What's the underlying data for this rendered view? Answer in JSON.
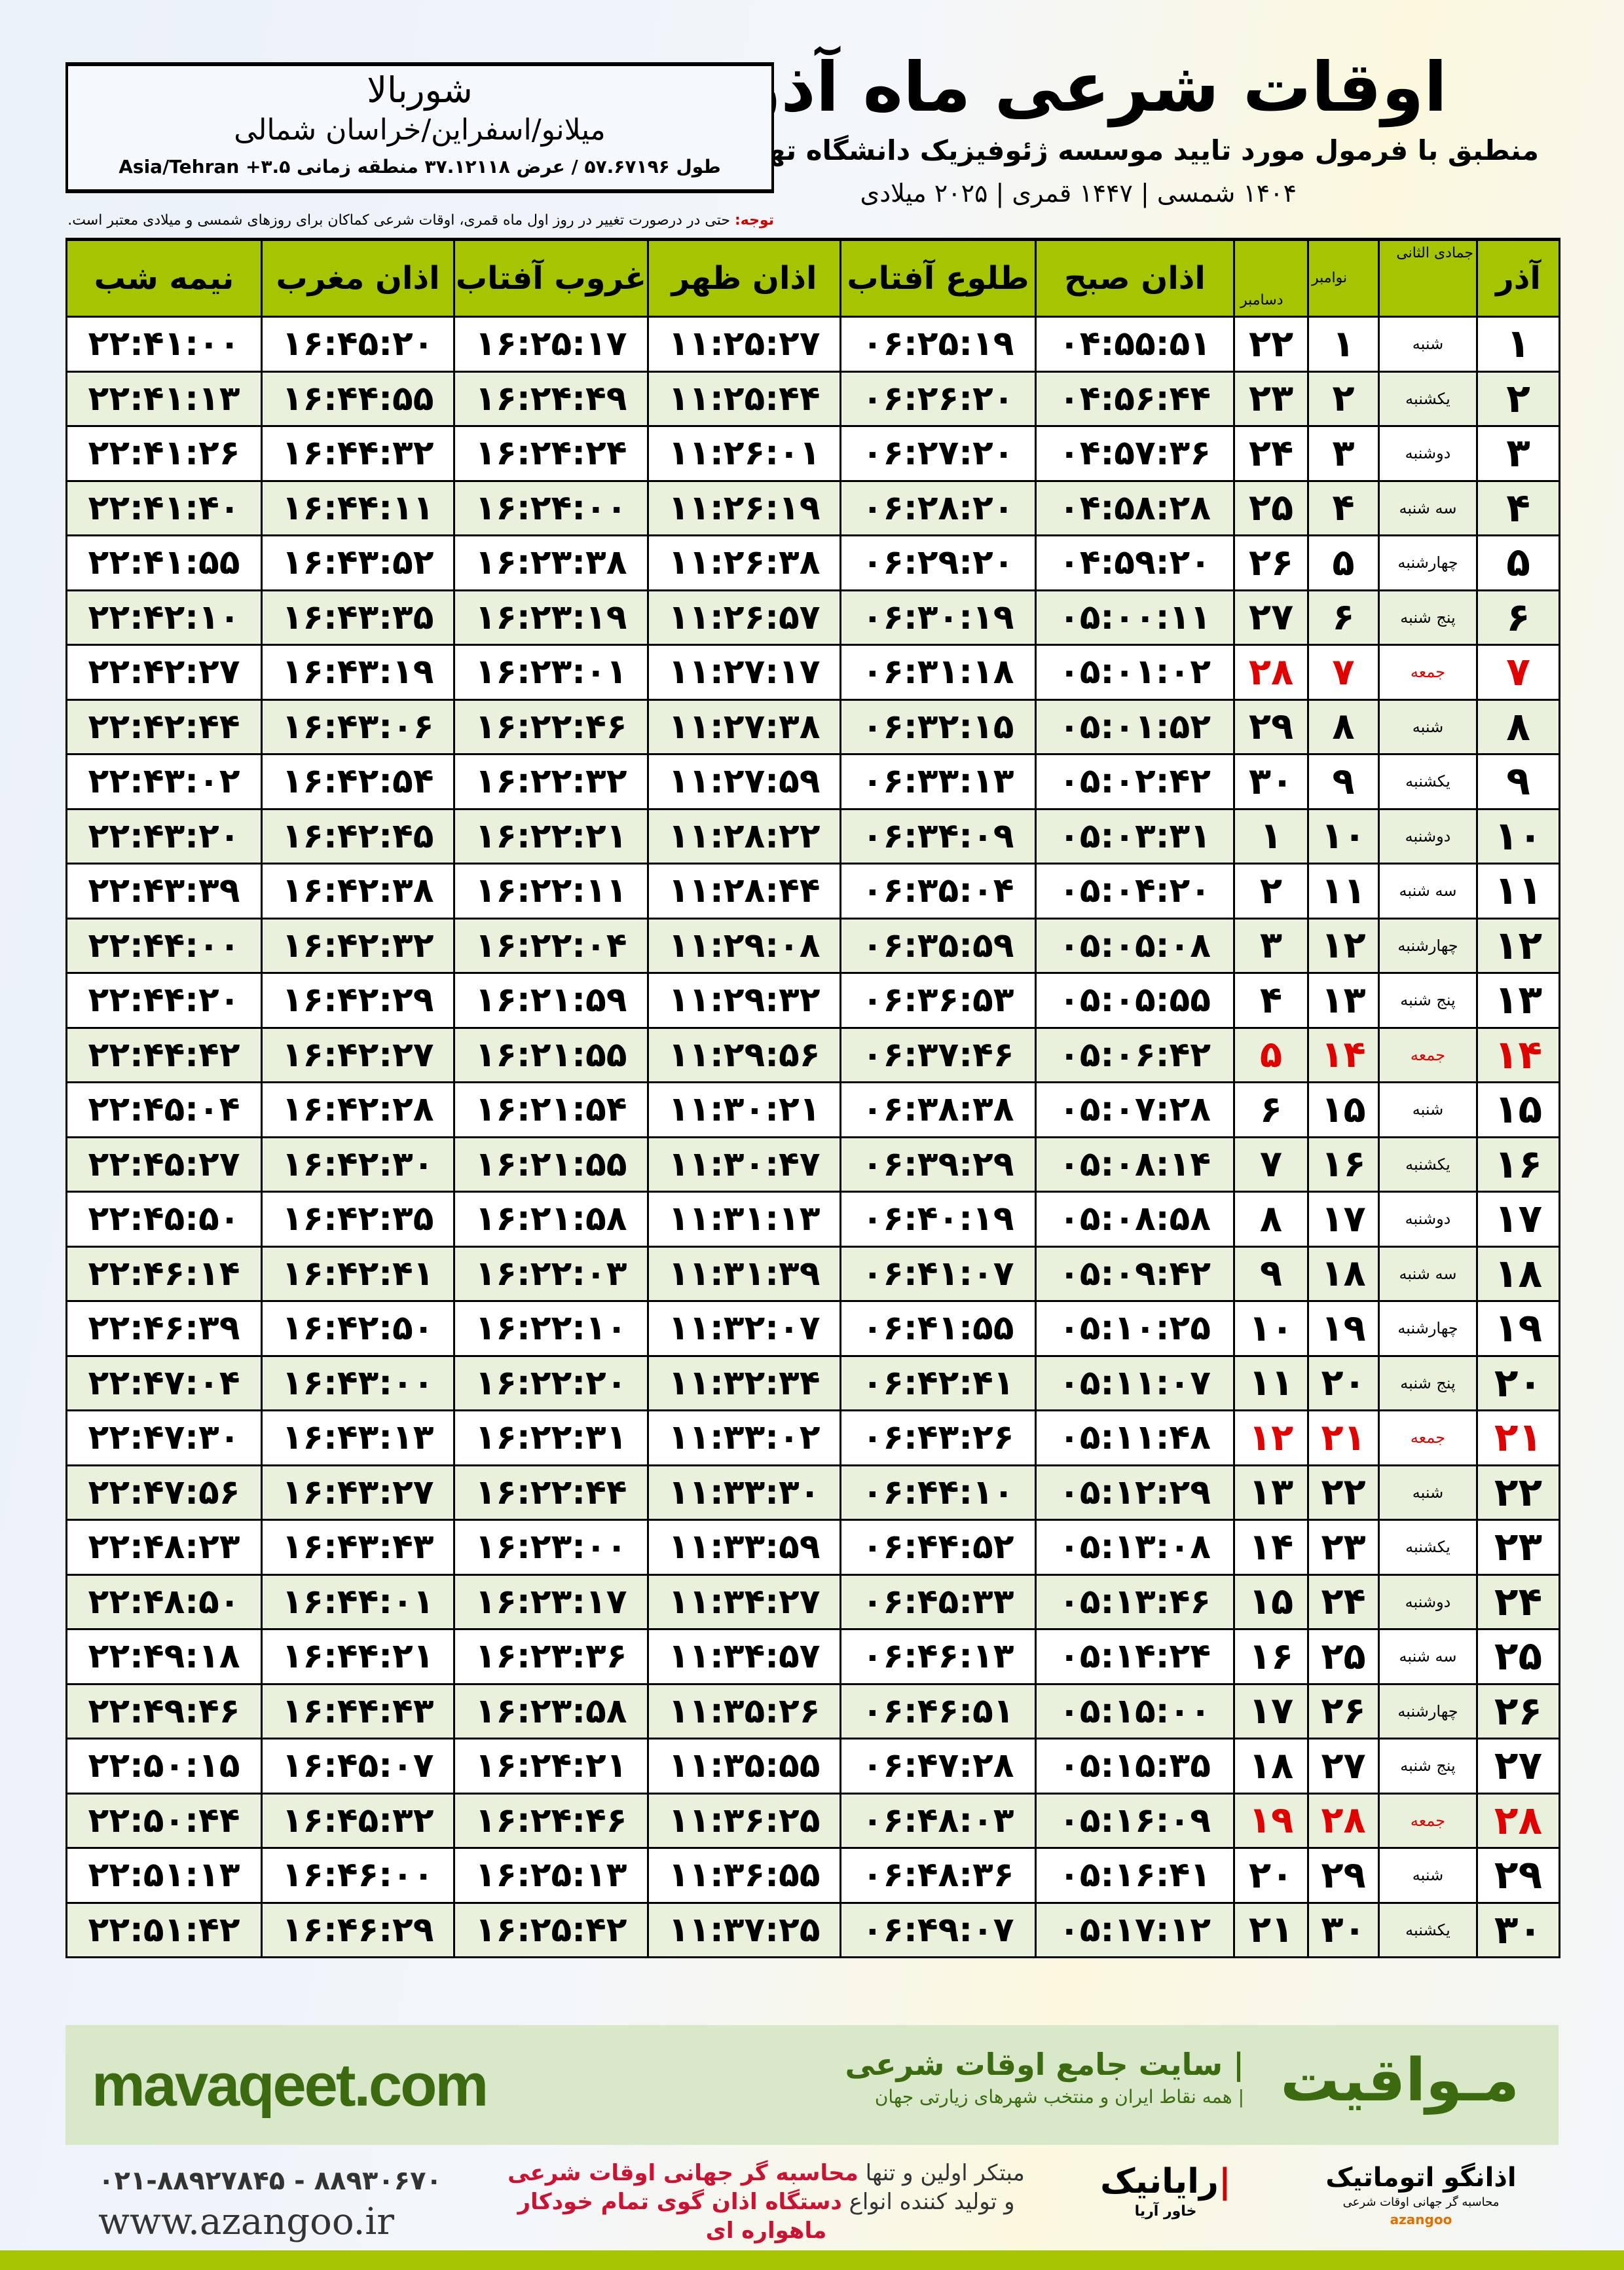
{
  "header": {
    "title": "اوقات شرعی ماه آذر",
    "subtitle": "منطبق با فرمول مورد تایید موسسه ژئوفیزیک دانشگاه تهران",
    "dates": "۱۴۰۴ شمسی | ۱۴۴۷ قمری | ۲۰۲۵ میلادی"
  },
  "location": {
    "city": "شوربالا",
    "province": "میلانو/اسفراین/خراسان شمالی",
    "coords": "طول ۵۷.۶۷۱۹۶ / عرض ۳۷.۱۲۱۱۸ منطقه زمانی ۳.۵+ Asia/Tehran"
  },
  "note": {
    "label": "توجه:",
    "text": " حتی در درصورت تغییر در روز اول ماه قمری، اوقات شرعی کماکان برای روزهای شمسی و میلادی معتبر است."
  },
  "columns": {
    "day": "آذر",
    "hijri": "جمادی الثانی",
    "nov": "نوامبر",
    "dec": "دسامبر",
    "sobh": "اذان صبح",
    "tolu": "طلوع آفتاب",
    "zohr": "اذان ظهر",
    "ghorub": "غروب آفتاب",
    "maghrib": "اذان مغرب",
    "nime": "نیمه شب"
  },
  "colors": {
    "header_green": "#a6c400",
    "friday_red": "#e00000",
    "brand_green": "#3b6a10"
  },
  "rows": [
    [
      "۱",
      "شنبه",
      "۱",
      "۲۲",
      "۰۴:۵۵:۵۱",
      "۰۶:۲۵:۱۹",
      "۱۱:۲۵:۲۷",
      "۱۶:۲۵:۱۷",
      "۱۶:۴۵:۲۰",
      "۲۲:۴۱:۰۰"
    ],
    [
      "۲",
      "یکشنبه",
      "۲",
      "۲۳",
      "۰۴:۵۶:۴۴",
      "۰۶:۲۶:۲۰",
      "۱۱:۲۵:۴۴",
      "۱۶:۲۴:۴۹",
      "۱۶:۴۴:۵۵",
      "۲۲:۴۱:۱۳"
    ],
    [
      "۳",
      "دوشنبه",
      "۳",
      "۲۴",
      "۰۴:۵۷:۳۶",
      "۰۶:۲۷:۲۰",
      "۱۱:۲۶:۰۱",
      "۱۶:۲۴:۲۴",
      "۱۶:۴۴:۳۲",
      "۲۲:۴۱:۲۶"
    ],
    [
      "۴",
      "سه شنبه",
      "۴",
      "۲۵",
      "۰۴:۵۸:۲۸",
      "۰۶:۲۸:۲۰",
      "۱۱:۲۶:۱۹",
      "۱۶:۲۴:۰۰",
      "۱۶:۴۴:۱۱",
      "۲۲:۴۱:۴۰"
    ],
    [
      "۵",
      "چهارشنبه",
      "۵",
      "۲۶",
      "۰۴:۵۹:۲۰",
      "۰۶:۲۹:۲۰",
      "۱۱:۲۶:۳۸",
      "۱۶:۲۳:۳۸",
      "۱۶:۴۳:۵۲",
      "۲۲:۴۱:۵۵"
    ],
    [
      "۶",
      "پنج شنبه",
      "۶",
      "۲۷",
      "۰۵:۰۰:۱۱",
      "۰۶:۳۰:۱۹",
      "۱۱:۲۶:۵۷",
      "۱۶:۲۳:۱۹",
      "۱۶:۴۳:۳۵",
      "۲۲:۴۲:۱۰"
    ],
    [
      "۷",
      "جمعه",
      "۷",
      "۲۸",
      "۰۵:۰۱:۰۲",
      "۰۶:۳۱:۱۸",
      "۱۱:۲۷:۱۷",
      "۱۶:۲۳:۰۱",
      "۱۶:۴۳:۱۹",
      "۲۲:۴۲:۲۷"
    ],
    [
      "۸",
      "شنبه",
      "۸",
      "۲۹",
      "۰۵:۰۱:۵۲",
      "۰۶:۳۲:۱۵",
      "۱۱:۲۷:۳۸",
      "۱۶:۲۲:۴۶",
      "۱۶:۴۳:۰۶",
      "۲۲:۴۲:۴۴"
    ],
    [
      "۹",
      "یکشنبه",
      "۹",
      "۳۰",
      "۰۵:۰۲:۴۲",
      "۰۶:۳۳:۱۳",
      "۱۱:۲۷:۵۹",
      "۱۶:۲۲:۳۲",
      "۱۶:۴۲:۵۴",
      "۲۲:۴۳:۰۲"
    ],
    [
      "۱۰",
      "دوشنبه",
      "۱۰",
      "۱",
      "۰۵:۰۳:۳۱",
      "۰۶:۳۴:۰۹",
      "۱۱:۲۸:۲۲",
      "۱۶:۲۲:۲۱",
      "۱۶:۴۲:۴۵",
      "۲۲:۴۳:۲۰"
    ],
    [
      "۱۱",
      "سه شنبه",
      "۱۱",
      "۲",
      "۰۵:۰۴:۲۰",
      "۰۶:۳۵:۰۴",
      "۱۱:۲۸:۴۴",
      "۱۶:۲۲:۱۱",
      "۱۶:۴۲:۳۸",
      "۲۲:۴۳:۳۹"
    ],
    [
      "۱۲",
      "چهارشنبه",
      "۱۲",
      "۳",
      "۰۵:۰۵:۰۸",
      "۰۶:۳۵:۵۹",
      "۱۱:۲۹:۰۸",
      "۱۶:۲۲:۰۴",
      "۱۶:۴۲:۳۲",
      "۲۲:۴۴:۰۰"
    ],
    [
      "۱۳",
      "پنج شنبه",
      "۱۳",
      "۴",
      "۰۵:۰۵:۵۵",
      "۰۶:۳۶:۵۳",
      "۱۱:۲۹:۳۲",
      "۱۶:۲۱:۵۹",
      "۱۶:۴۲:۲۹",
      "۲۲:۴۴:۲۰"
    ],
    [
      "۱۴",
      "جمعه",
      "۱۴",
      "۵",
      "۰۵:۰۶:۴۲",
      "۰۶:۳۷:۴۶",
      "۱۱:۲۹:۵۶",
      "۱۶:۲۱:۵۵",
      "۱۶:۴۲:۲۷",
      "۲۲:۴۴:۴۲"
    ],
    [
      "۱۵",
      "شنبه",
      "۱۵",
      "۶",
      "۰۵:۰۷:۲۸",
      "۰۶:۳۸:۳۸",
      "۱۱:۳۰:۲۱",
      "۱۶:۲۱:۵۴",
      "۱۶:۴۲:۲۸",
      "۲۲:۴۵:۰۴"
    ],
    [
      "۱۶",
      "یکشنبه",
      "۱۶",
      "۷",
      "۰۵:۰۸:۱۴",
      "۰۶:۳۹:۲۹",
      "۱۱:۳۰:۴۷",
      "۱۶:۲۱:۵۵",
      "۱۶:۴۲:۳۰",
      "۲۲:۴۵:۲۷"
    ],
    [
      "۱۷",
      "دوشنبه",
      "۱۷",
      "۸",
      "۰۵:۰۸:۵۸",
      "۰۶:۴۰:۱۹",
      "۱۱:۳۱:۱۳",
      "۱۶:۲۱:۵۸",
      "۱۶:۴۲:۳۵",
      "۲۲:۴۵:۵۰"
    ],
    [
      "۱۸",
      "سه شنبه",
      "۱۸",
      "۹",
      "۰۵:۰۹:۴۲",
      "۰۶:۴۱:۰۷",
      "۱۱:۳۱:۳۹",
      "۱۶:۲۲:۰۳",
      "۱۶:۴۲:۴۱",
      "۲۲:۴۶:۱۴"
    ],
    [
      "۱۹",
      "چهارشنبه",
      "۱۹",
      "۱۰",
      "۰۵:۱۰:۲۵",
      "۰۶:۴۱:۵۵",
      "۱۱:۳۲:۰۷",
      "۱۶:۲۲:۱۰",
      "۱۶:۴۲:۵۰",
      "۲۲:۴۶:۳۹"
    ],
    [
      "۲۰",
      "پنج شنبه",
      "۲۰",
      "۱۱",
      "۰۵:۱۱:۰۷",
      "۰۶:۴۲:۴۱",
      "۱۱:۳۲:۳۴",
      "۱۶:۲۲:۲۰",
      "۱۶:۴۳:۰۰",
      "۲۲:۴۷:۰۴"
    ],
    [
      "۲۱",
      "جمعه",
      "۲۱",
      "۱۲",
      "۰۵:۱۱:۴۸",
      "۰۶:۴۳:۲۶",
      "۱۱:۳۳:۰۲",
      "۱۶:۲۲:۳۱",
      "۱۶:۴۳:۱۳",
      "۲۲:۴۷:۳۰"
    ],
    [
      "۲۲",
      "شنبه",
      "۲۲",
      "۱۳",
      "۰۵:۱۲:۲۹",
      "۰۶:۴۴:۱۰",
      "۱۱:۳۳:۳۰",
      "۱۶:۲۲:۴۴",
      "۱۶:۴۳:۲۷",
      "۲۲:۴۷:۵۶"
    ],
    [
      "۲۳",
      "یکشنبه",
      "۲۳",
      "۱۴",
      "۰۵:۱۳:۰۸",
      "۰۶:۴۴:۵۲",
      "۱۱:۳۳:۵۹",
      "۱۶:۲۳:۰۰",
      "۱۶:۴۳:۴۳",
      "۲۲:۴۸:۲۳"
    ],
    [
      "۲۴",
      "دوشنبه",
      "۲۴",
      "۱۵",
      "۰۵:۱۳:۴۶",
      "۰۶:۴۵:۳۳",
      "۱۱:۳۴:۲۷",
      "۱۶:۲۳:۱۷",
      "۱۶:۴۴:۰۱",
      "۲۲:۴۸:۵۰"
    ],
    [
      "۲۵",
      "سه شنبه",
      "۲۵",
      "۱۶",
      "۰۵:۱۴:۲۴",
      "۰۶:۴۶:۱۳",
      "۱۱:۳۴:۵۷",
      "۱۶:۲۳:۳۶",
      "۱۶:۴۴:۲۱",
      "۲۲:۴۹:۱۸"
    ],
    [
      "۲۶",
      "چهارشنبه",
      "۲۶",
      "۱۷",
      "۰۵:۱۵:۰۰",
      "۰۶:۴۶:۵۱",
      "۱۱:۳۵:۲۶",
      "۱۶:۲۳:۵۸",
      "۱۶:۴۴:۴۳",
      "۲۲:۴۹:۴۶"
    ],
    [
      "۲۷",
      "پنج شنبه",
      "۲۷",
      "۱۸",
      "۰۵:۱۵:۳۵",
      "۰۶:۴۷:۲۸",
      "۱۱:۳۵:۵۵",
      "۱۶:۲۴:۲۱",
      "۱۶:۴۵:۰۷",
      "۲۲:۵۰:۱۵"
    ],
    [
      "۲۸",
      "جمعه",
      "۲۸",
      "۱۹",
      "۰۵:۱۶:۰۹",
      "۰۶:۴۸:۰۳",
      "۱۱:۳۶:۲۵",
      "۱۶:۲۴:۴۶",
      "۱۶:۴۵:۳۲",
      "۲۲:۵۰:۴۴"
    ],
    [
      "۲۹",
      "شنبه",
      "۲۹",
      "۲۰",
      "۰۵:۱۶:۴۱",
      "۰۶:۴۸:۳۶",
      "۱۱:۳۶:۵۵",
      "۱۶:۲۵:۱۳",
      "۱۶:۴۶:۰۰",
      "۲۲:۵۱:۱۳"
    ],
    [
      "۳۰",
      "یکشنبه",
      "۳۰",
      "۲۱",
      "۰۵:۱۷:۱۲",
      "۰۶:۴۹:۰۷",
      "۱۱:۳۷:۲۵",
      "۱۶:۲۵:۴۲",
      "۱۶:۴۶:۲۹",
      "۲۲:۵۱:۴۲"
    ]
  ],
  "footer": {
    "site": "mavaqeet.com",
    "brand": "مـواقیت",
    "tagline_main": "| سایت جامع اوقات شرعی",
    "tagline_sub": "| همه نقاط ایران و منتخب شهرهای زیارتی جهان",
    "phone": "۰۲۱-۸۸۹۲۷۸۴۵ - ۸۸۹۳۰۶۷۰",
    "web": "www.azangoo.ir",
    "slogan1a": "مبتکر اولین و تنها ",
    "slogan1b": "محاسبه گر جهانی اوقات شرعی",
    "slogan2a": "و تولید کننده انواع ",
    "slogan2b": "دستگاه اذان گوی تمام خودکار ماهواره ای",
    "logo1": "رایانیک",
    "logo1_sub": "خاور آریا",
    "logo2": "اذانگو اتوماتیک",
    "logo2_sub": "محاسبه گر جهانی اوقات شرعی",
    "logo2_en": "azangoo"
  }
}
